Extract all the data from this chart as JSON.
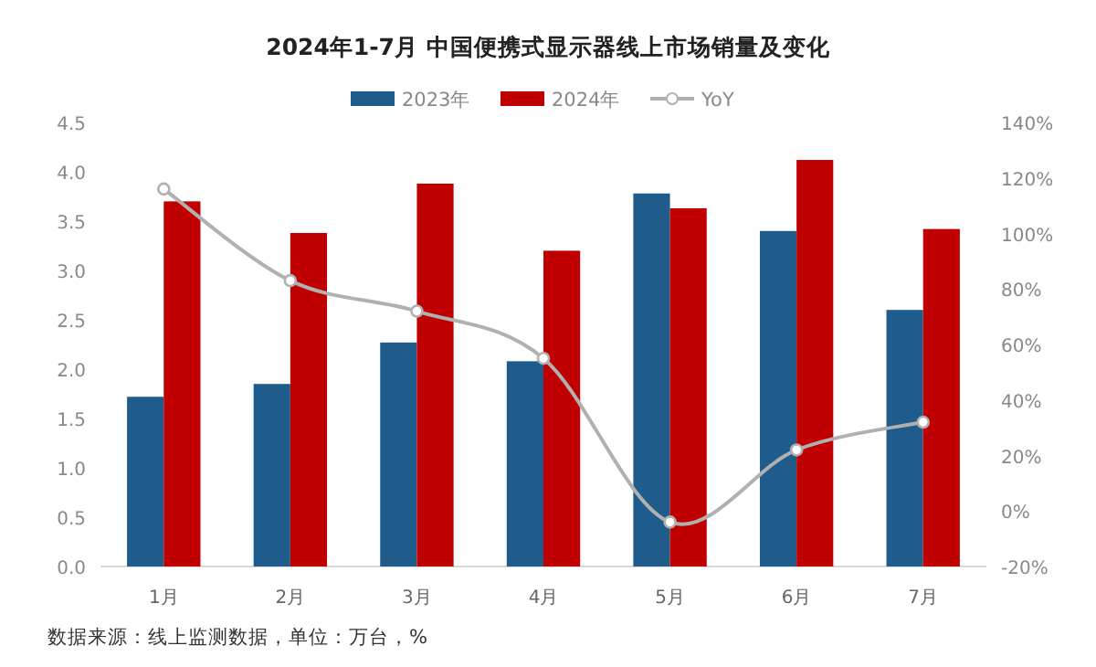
{
  "chart_data": {
    "type": "bar",
    "title": "2024年1-7月 中国便携式显示器线上市场销量及变化",
    "categories": [
      "1月",
      "2月",
      "3月",
      "4月",
      "5月",
      "6月",
      "7月"
    ],
    "series": [
      {
        "name": "2023年",
        "color": "#1f5c8b",
        "values": [
          1.72,
          1.85,
          2.27,
          2.08,
          3.78,
          3.4,
          2.6
        ]
      },
      {
        "name": "2024年",
        "color": "#c00000",
        "values": [
          3.7,
          3.38,
          3.88,
          3.2,
          3.63,
          4.12,
          3.42
        ]
      },
      {
        "name": "YoY",
        "type": "line",
        "axis": "y2",
        "color": "#b0b0b0",
        "marker": "circle",
        "values": [
          116,
          83,
          72,
          55,
          -4,
          22,
          32
        ]
      }
    ],
    "ylim": [
      0,
      4.5
    ],
    "yticks": [
      {
        "value": 0,
        "label": "0.0"
      },
      {
        "value": 0.5,
        "label": "0.5"
      },
      {
        "value": 1,
        "label": "1.0"
      },
      {
        "value": 1.5,
        "label": "1.5"
      },
      {
        "value": 2,
        "label": "2.0"
      },
      {
        "value": 2.5,
        "label": "2.5"
      },
      {
        "value": 3,
        "label": "3.0"
      },
      {
        "value": 3.5,
        "label": "3.5"
      },
      {
        "value": 4,
        "label": "4.0"
      },
      {
        "value": 4.5,
        "label": "4.5"
      }
    ],
    "y2lim": [
      -20,
      140
    ],
    "y2ticks": [
      {
        "value": -20,
        "label": "-20%"
      },
      {
        "value": 0,
        "label": "0%"
      },
      {
        "value": 20,
        "label": "20%"
      },
      {
        "value": 40,
        "label": "40%"
      },
      {
        "value": 60,
        "label": "60%"
      },
      {
        "value": 80,
        "label": "80%"
      },
      {
        "value": 100,
        "label": "100%"
      },
      {
        "value": 120,
        "label": "120%"
      },
      {
        "value": 140,
        "label": "140%"
      }
    ],
    "legend": "top",
    "annotations": [
      "数据来源：线上监测数据，单位：万台，%"
    ]
  }
}
